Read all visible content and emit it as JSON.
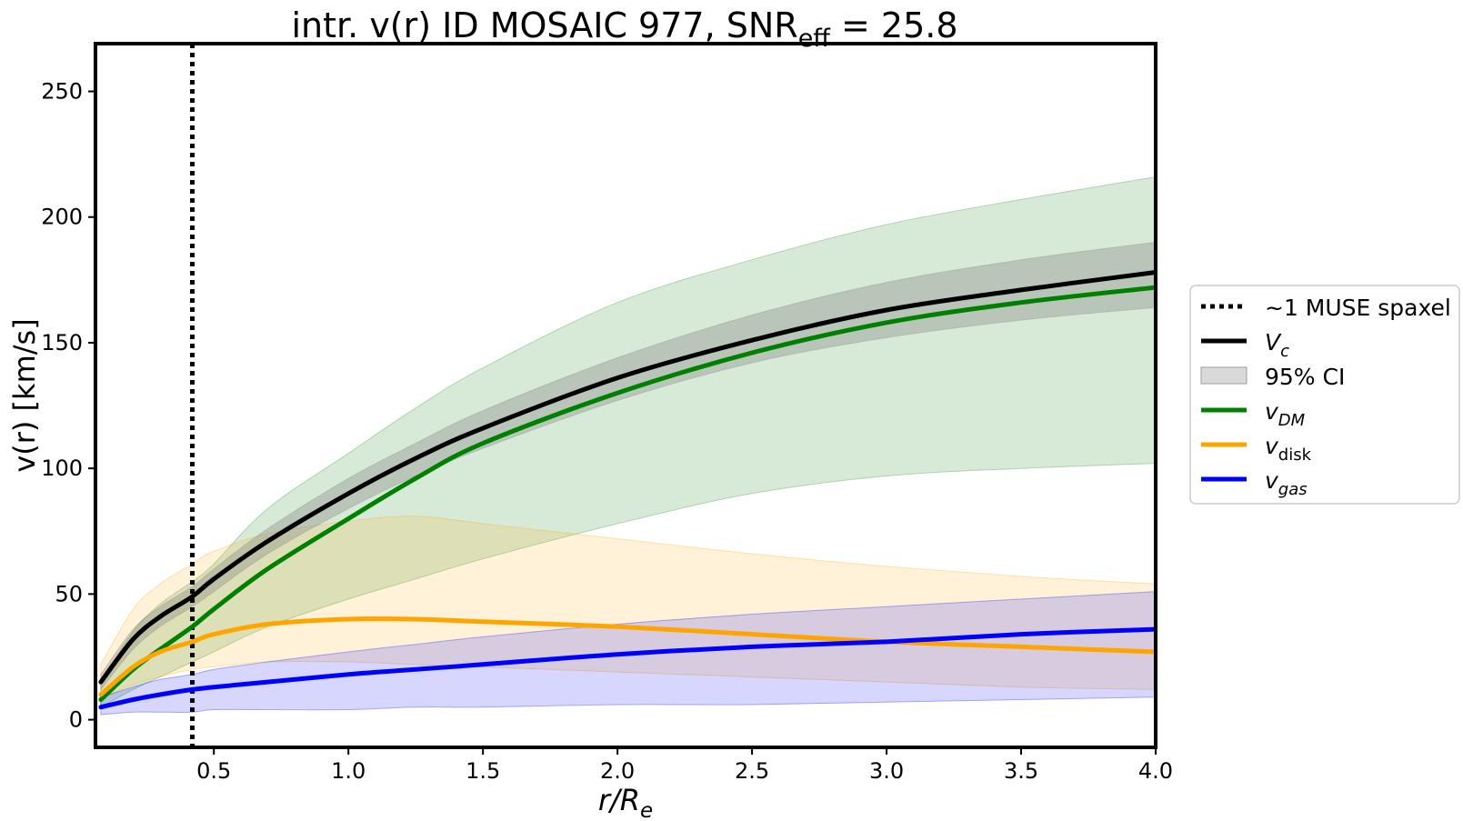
{
  "chart_data": {
    "type": "line",
    "title": {
      "prefix": "intr. v(r) ID MOSAIC 977, SNR",
      "subscript": "eff",
      "suffix": " = 25.8"
    },
    "xlabel": {
      "main": "r/R",
      "subscript": "e"
    },
    "ylabel": "v(r) [km/s]",
    "xlim": [
      0.06,
      4.0
    ],
    "ylim": [
      -11,
      269
    ],
    "xticks": [
      "0.5",
      "1.0",
      "1.5",
      "2.0",
      "2.5",
      "3.0",
      "3.5",
      "4.0"
    ],
    "yticks": [
      "0",
      "50",
      "100",
      "150",
      "200",
      "250"
    ],
    "vline": {
      "x": 0.42,
      "label": "~1 MUSE spaxel"
    },
    "ci_label": "95% CI",
    "x": [
      0.08,
      0.2,
      0.3,
      0.42,
      0.5,
      0.7,
      1.0,
      1.25,
      1.5,
      2.0,
      2.5,
      3.0,
      3.5,
      4.0
    ],
    "series": [
      {
        "name": "DM",
        "legend": {
          "main": "v",
          "subscript": "DM"
        },
        "color": "#008000",
        "band_color": "#228b22",
        "values": [
          8,
          20,
          28,
          37,
          44,
          60,
          80,
          96,
          110,
          130,
          146,
          158,
          166,
          172
        ],
        "lower": [
          5,
          12,
          17,
          23,
          27,
          37,
          48,
          56,
          64,
          78,
          90,
          97,
          100,
          102
        ],
        "upper": [
          15,
          35,
          46,
          55,
          62,
          84,
          106,
          124,
          140,
          166,
          183,
          197,
          207,
          216
        ]
      },
      {
        "name": "disk",
        "legend": {
          "main": "v",
          "subscript": "disk"
        },
        "color": "#ffa500",
        "band_color": "#ffa500",
        "values": [
          10,
          21,
          27,
          31,
          34,
          38,
          40,
          40,
          39,
          37,
          34,
          31,
          29,
          27
        ],
        "lower": [
          8,
          14,
          17,
          20,
          21,
          23,
          23,
          22,
          21,
          19,
          17,
          15,
          13,
          12
        ],
        "upper": [
          22,
          44,
          54,
          62,
          67,
          74,
          79,
          81,
          78,
          72,
          66,
          61,
          57,
          54
        ]
      },
      {
        "name": "gas",
        "legend": {
          "main": "v",
          "subscript": "gas"
        },
        "color": "#0000ff",
        "band_color": "#0000ff",
        "values": [
          5,
          8,
          10,
          12,
          13,
          15,
          18,
          20,
          22,
          26,
          29,
          31,
          34,
          36
        ],
        "lower": [
          2,
          3,
          3,
          3,
          4,
          4,
          4,
          5,
          5,
          6,
          6,
          7,
          8,
          9
        ],
        "upper": [
          9,
          13,
          16,
          18,
          20,
          23,
          27,
          30,
          33,
          38,
          42,
          45,
          48,
          51
        ]
      },
      {
        "name": "Vc",
        "legend": {
          "main": "V",
          "subscript": "c"
        },
        "color": "#000000",
        "band_color": "#808080",
        "values": [
          15,
          32,
          41,
          49,
          56,
          71,
          90,
          104,
          116,
          136,
          151,
          163,
          171,
          178
        ],
        "lower": [
          12,
          28,
          37,
          45,
          51,
          66,
          84,
          97,
          108,
          127,
          142,
          152,
          159,
          164
        ],
        "upper": [
          18,
          36,
          45,
          53,
          60,
          76,
          96,
          110,
          123,
          144,
          161,
          174,
          183,
          190
        ]
      }
    ]
  }
}
